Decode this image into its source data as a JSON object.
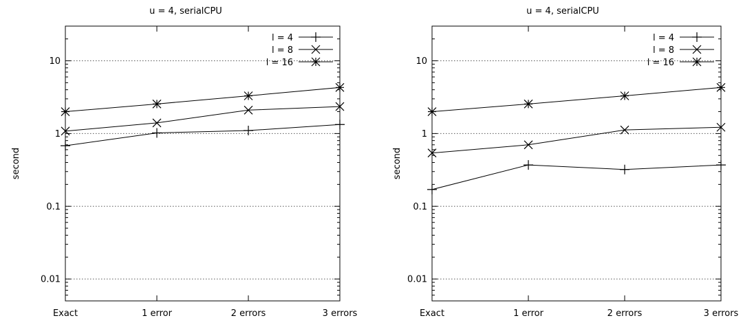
{
  "chart_data": [
    {
      "type": "line",
      "title": "u = 4, serialCPU",
      "xlabel": "",
      "ylabel": "second",
      "yscale": "log",
      "ylim": [
        0.005,
        30
      ],
      "yticks": [
        0.01,
        0.1,
        1,
        10
      ],
      "ytick_labels": [
        "0.01",
        "0.1",
        "1",
        "10"
      ],
      "categories": [
        "Exact",
        "1 error",
        "2 errors",
        "3 errors"
      ],
      "grid": "horizontal dotted",
      "legend": "top-right",
      "series": [
        {
          "name": "l = 4",
          "marker": "plus",
          "values": [
            0.68,
            1.02,
            1.1,
            1.33
          ]
        },
        {
          "name": "l = 8",
          "marker": "cross",
          "values": [
            1.08,
            1.4,
            2.1,
            2.35
          ]
        },
        {
          "name": "l = 16",
          "marker": "star",
          "values": [
            2.0,
            2.55,
            3.3,
            4.3
          ]
        }
      ]
    },
    {
      "type": "line",
      "title": "u = 4, serialCPU",
      "xlabel": "",
      "ylabel": "second",
      "yscale": "log",
      "ylim": [
        0.005,
        30
      ],
      "yticks": [
        0.01,
        0.1,
        1,
        10
      ],
      "ytick_labels": [
        "0.01",
        "0.1",
        "1",
        "10"
      ],
      "categories": [
        "Exact",
        "1 error",
        "2 errors",
        "3 errors"
      ],
      "grid": "horizontal dotted",
      "legend": "top-right",
      "series": [
        {
          "name": "l = 4",
          "marker": "plus",
          "values": [
            0.17,
            0.37,
            0.32,
            0.37
          ]
        },
        {
          "name": "l = 8",
          "marker": "cross",
          "values": [
            0.54,
            0.7,
            1.12,
            1.22
          ]
        },
        {
          "name": "l = 16",
          "marker": "star",
          "values": [
            2.0,
            2.55,
            3.3,
            4.3
          ]
        }
      ]
    }
  ]
}
